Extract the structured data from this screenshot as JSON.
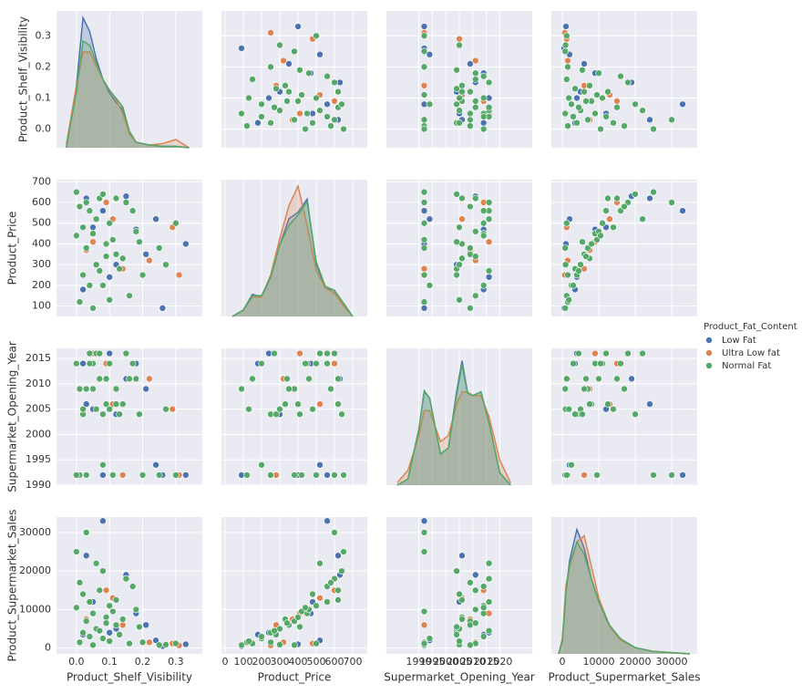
{
  "chart_data": {
    "type": "pairplot",
    "legend_title": "Product_Fat_Content",
    "variables": [
      {
        "label": "Product_Shelf_Visibility",
        "lim": [
          -0.06,
          0.38
        ],
        "ticks": [
          {
            "value": 0,
            "label": "0.0"
          },
          {
            "value": 0.1,
            "label": "0.1"
          },
          {
            "value": 0.2,
            "label": "0.2"
          },
          {
            "value": 0.3,
            "label": "0.3"
          }
        ],
        "kde_x": [
          -0.03,
          0,
          0.02,
          0.04,
          0.06,
          0.08,
          0.1,
          0.12,
          0.14,
          0.16,
          0.18,
          0.22,
          0.26,
          0.3,
          0.34
        ],
        "kde_ylim": [
          0,
          1
        ]
      },
      {
        "label": "Product_Price",
        "lim": [
          -20,
          780
        ],
        "ylim": [
          50,
          710
        ],
        "ticks": [
          0,
          100,
          200,
          300,
          400,
          500,
          600,
          700
        ],
        "kde_x": [
          40,
          100,
          150,
          200,
          250,
          300,
          350,
          400,
          450,
          500,
          550,
          600,
          650,
          700
        ],
        "kde_ylim": [
          0,
          1.05
        ]
      },
      {
        "label": "Supermarket_Opening_Year",
        "lim": [
          1978,
          2032
        ],
        "ylim": [
          1990,
          2017
        ],
        "ticks": [
          1990,
          1995,
          2000,
          2005,
          2010,
          2015,
          2020
        ],
        "kde_x": [
          1982,
          1986,
          1990,
          1992,
          1994,
          1998,
          2001,
          2004,
          2006,
          2008,
          2010,
          2013,
          2016,
          2020,
          2024
        ],
        "kde_ylim": [
          0,
          1.1
        ]
      },
      {
        "label": "Product_Supermarket_Sales",
        "lim": [
          -3000,
          37000
        ],
        "ylim": [
          -1500,
          34000
        ],
        "ticks": [
          0,
          10000,
          20000,
          30000
        ],
        "kde_x": [
          -1000,
          0,
          1000,
          2000,
          4000,
          6000,
          8000,
          10000,
          13000,
          16000,
          20000,
          25000,
          30000,
          35000
        ],
        "kde_ylim": [
          0,
          1.1
        ]
      }
    ],
    "series": [
      {
        "name": "Low Fat",
        "color": "#4c72b0",
        "records": [
          [
            0.02,
            180,
            2014,
            3500
          ],
          [
            0.05,
            480,
            2005,
            12000
          ],
          [
            0.15,
            630,
            2011,
            19000
          ],
          [
            0.21,
            350,
            2009,
            6000
          ],
          [
            0.33,
            400,
            1992,
            1000
          ],
          [
            0.08,
            560,
            1992,
            33000
          ],
          [
            0.12,
            300,
            2004,
            5000
          ],
          [
            0.03,
            620,
            2006,
            24000
          ],
          [
            0.24,
            520,
            1994,
            2000
          ],
          [
            0.1,
            240,
            2016,
            4000
          ],
          [
            0.18,
            470,
            2014,
            9000
          ],
          [
            0.26,
            90,
            1992,
            500
          ]
        ],
        "kde": [
          [
            0,
            0.45,
            0.95,
            0.85,
            0.65,
            0.5,
            0.4,
            0.33,
            0.28,
            0.12,
            0.04,
            0.02,
            0.01,
            0.01,
            0
          ],
          [
            0,
            0.05,
            0.17,
            0.15,
            0.3,
            0.55,
            0.75,
            0.8,
            0.9,
            0.4,
            0.22,
            0.2,
            0.1,
            0
          ],
          [
            0,
            0.05,
            0.45,
            0.75,
            0.7,
            0.25,
            0.3,
            0.75,
            1.0,
            0.75,
            0.72,
            0.75,
            0.5,
            0.1,
            0
          ],
          [
            0,
            0.1,
            0.5,
            0.75,
            1.0,
            0.85,
            0.6,
            0.42,
            0.22,
            0.12,
            0.05,
            0.02,
            0.01,
            0
          ]
        ]
      },
      {
        "name": "Ultra Low fat",
        "color": "#dd8452",
        "records": [
          [
            0.03,
            370,
            2009,
            7500
          ],
          [
            0.29,
            480,
            2005,
            1200
          ],
          [
            0.09,
            600,
            2014,
            15000
          ],
          [
            0.14,
            280,
            1992,
            6000
          ],
          [
            0.05,
            410,
            2016,
            9000
          ],
          [
            0.22,
            320,
            2011,
            1500
          ],
          [
            0.11,
            520,
            2006,
            13000
          ],
          [
            0.31,
            250,
            1992,
            700
          ]
        ],
        "kde": [
          [
            0.03,
            0.45,
            0.7,
            0.7,
            0.6,
            0.5,
            0.42,
            0.35,
            0.25,
            0.1,
            0.04,
            0.02,
            0.03,
            0.06,
            0
          ],
          [
            0,
            0.05,
            0.15,
            0.15,
            0.32,
            0.6,
            0.85,
            1.0,
            0.7,
            0.35,
            0.22,
            0.18,
            0.08,
            0
          ],
          [
            0.02,
            0.12,
            0.4,
            0.6,
            0.6,
            0.35,
            0.4,
            0.65,
            0.75,
            0.75,
            0.72,
            0.72,
            0.55,
            0.2,
            0.02
          ],
          [
            0,
            0.12,
            0.55,
            0.7,
            0.9,
            0.95,
            0.7,
            0.45,
            0.22,
            0.11,
            0.05,
            0.02,
            0.01,
            0
          ]
        ]
      },
      {
        "name": "Normal Fat",
        "color": "#55a868",
        "records": [
          [
            0.01,
            120,
            1992,
            1500
          ],
          [
            0.02,
            250,
            2004,
            4000
          ],
          [
            0.03,
            380,
            2009,
            7000
          ],
          [
            0.05,
            450,
            2014,
            9000
          ],
          [
            0.04,
            560,
            2016,
            12000
          ],
          [
            0.06,
            300,
            2005,
            5000
          ],
          [
            0.07,
            620,
            2011,
            15000
          ],
          [
            0.08,
            200,
            1994,
            2500
          ],
          [
            0.09,
            400,
            2006,
            8000
          ],
          [
            0.1,
            500,
            2014,
            11000
          ],
          [
            0.12,
            350,
            2009,
            6000
          ],
          [
            0.13,
            280,
            2004,
            3500
          ],
          [
            0.15,
            600,
            2016,
            18000
          ],
          [
            0.16,
            150,
            2011,
            1200
          ],
          [
            0.0,
            650,
            1992,
            25000
          ],
          [
            0.02,
            480,
            2005,
            14000
          ],
          [
            0.11,
            420,
            1992,
            9500
          ],
          [
            0.14,
            330,
            2006,
            7500
          ],
          [
            0.17,
            560,
            2014,
            16000
          ],
          [
            0.05,
            90,
            2009,
            800
          ],
          [
            0.03,
            600,
            1992,
            30000
          ],
          [
            0.08,
            640,
            2004,
            20000
          ],
          [
            0.18,
            460,
            2011,
            10000
          ],
          [
            0.2,
            250,
            1992,
            1500
          ],
          [
            0.25,
            380,
            1992,
            800
          ],
          [
            0.3,
            500,
            1992,
            1200
          ],
          [
            0.27,
            300,
            2005,
            900
          ],
          [
            0.06,
            520,
            2016,
            22000
          ],
          [
            0.04,
            200,
            2014,
            3000
          ],
          [
            0.1,
            130,
            2005,
            1800
          ],
          [
            0.01,
            580,
            2009,
            17000
          ],
          [
            0.12,
            620,
            2006,
            12500
          ],
          [
            0.09,
            340,
            2011,
            6500
          ],
          [
            0.19,
            410,
            2004,
            5500
          ],
          [
            0.0,
            440,
            2014,
            10500
          ],
          [
            0.07,
            270,
            2016,
            4500
          ]
        ],
        "kde": [
          [
            0.01,
            0.4,
            0.78,
            0.75,
            0.62,
            0.5,
            0.42,
            0.36,
            0.3,
            0.12,
            0.04,
            0.02,
            0.01,
            0.01,
            0
          ],
          [
            0,
            0.05,
            0.16,
            0.16,
            0.3,
            0.55,
            0.7,
            0.78,
            0.88,
            0.42,
            0.23,
            0.2,
            0.1,
            0
          ],
          [
            0,
            0.05,
            0.45,
            0.76,
            0.7,
            0.25,
            0.3,
            0.72,
            0.97,
            0.74,
            0.72,
            0.75,
            0.5,
            0.1,
            0
          ],
          [
            0,
            0.1,
            0.5,
            0.72,
            0.9,
            0.8,
            0.6,
            0.42,
            0.23,
            0.12,
            0.05,
            0.02,
            0.01,
            0
          ]
        ]
      }
    ]
  }
}
